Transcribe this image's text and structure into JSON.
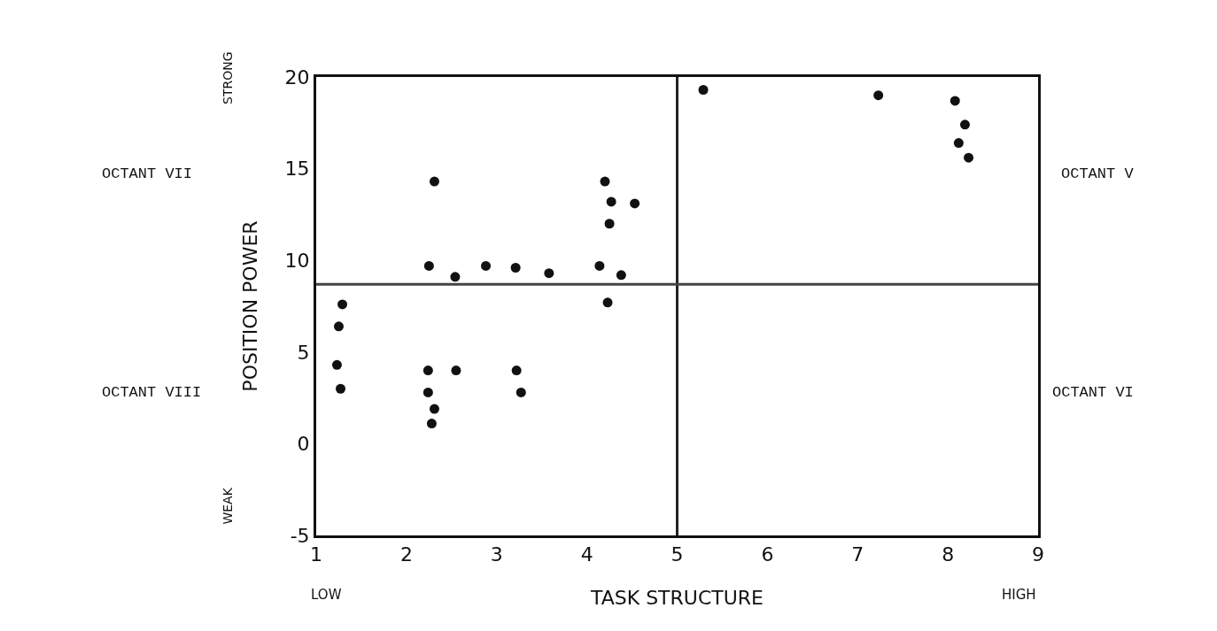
{
  "chart_data": {
    "type": "scatter",
    "xlabel": "TASK STRUCTURE",
    "ylabel": "POSITION POWER",
    "x": [
      1.29,
      1.25,
      1.23,
      1.27,
      2.24,
      2.24,
      2.31,
      2.28,
      2.55,
      3.22,
      3.27,
      2.31,
      2.25,
      2.54,
      2.88,
      3.21,
      3.58,
      4.14,
      4.38,
      4.2,
      4.27,
      4.25,
      4.53,
      4.23,
      5.29,
      7.23,
      8.08,
      8.19,
      8.12,
      8.23
    ],
    "series": [
      {
        "color": "#111111",
        "values": [
          7.6,
          6.4,
          4.3,
          3.0,
          4.0,
          2.8,
          1.9,
          1.1,
          4.0,
          4.0,
          2.8,
          14.3,
          9.7,
          9.1,
          9.7,
          9.6,
          9.3,
          9.7,
          9.2,
          14.3,
          13.2,
          12.0,
          13.1,
          7.7,
          19.3,
          19.0,
          18.7,
          17.4,
          16.4,
          15.6
        ]
      }
    ],
    "xlim": [
      1,
      9
    ],
    "xticks": [
      1,
      2,
      3,
      4,
      5,
      6,
      7,
      8,
      9
    ],
    "ylim": [
      -5,
      20
    ],
    "yticks": [
      -5,
      0,
      5,
      10,
      15,
      20
    ],
    "ref_lines": [
      {
        "axis": "x",
        "value": 5,
        "color": "#222222"
      },
      {
        "axis": "y",
        "value": 8.7,
        "color": "#444444"
      }
    ],
    "annotations": [
      "OCTANT VII",
      "OCTANT VIII",
      "OCTANT V",
      "OCTANT VI",
      "STRONG",
      "WEAK",
      "LOW",
      "HIGH"
    ],
    "marker": "circle"
  }
}
